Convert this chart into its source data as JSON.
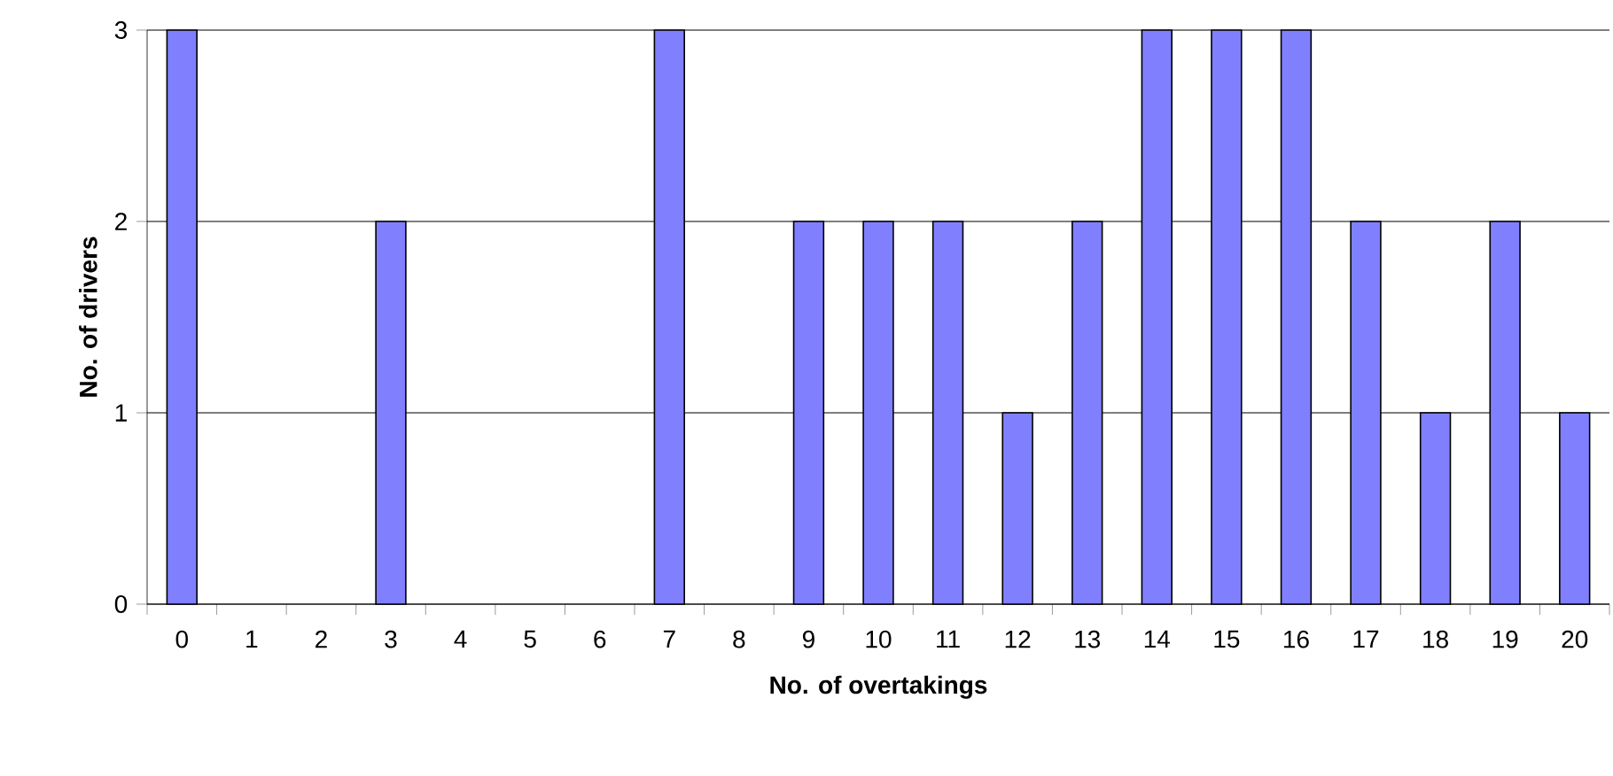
{
  "chart_data": {
    "type": "bar",
    "xlabel": "No. of overtakings",
    "ylabel": "No. of drivers",
    "categories": [
      "0",
      "1",
      "2",
      "3",
      "4",
      "5",
      "6",
      "7",
      "8",
      "9",
      "10",
      "11",
      "12",
      "13",
      "14",
      "15",
      "16",
      "17",
      "18",
      "19",
      "20"
    ],
    "values": [
      3,
      0,
      0,
      2,
      0,
      0,
      0,
      3,
      0,
      2,
      2,
      2,
      1,
      2,
      3,
      3,
      3,
      2,
      1,
      2,
      1
    ],
    "color": "#8080ff",
    "ylim": [
      0,
      3
    ],
    "yticks": [
      0,
      1,
      2,
      3
    ],
    "grid": "y"
  }
}
